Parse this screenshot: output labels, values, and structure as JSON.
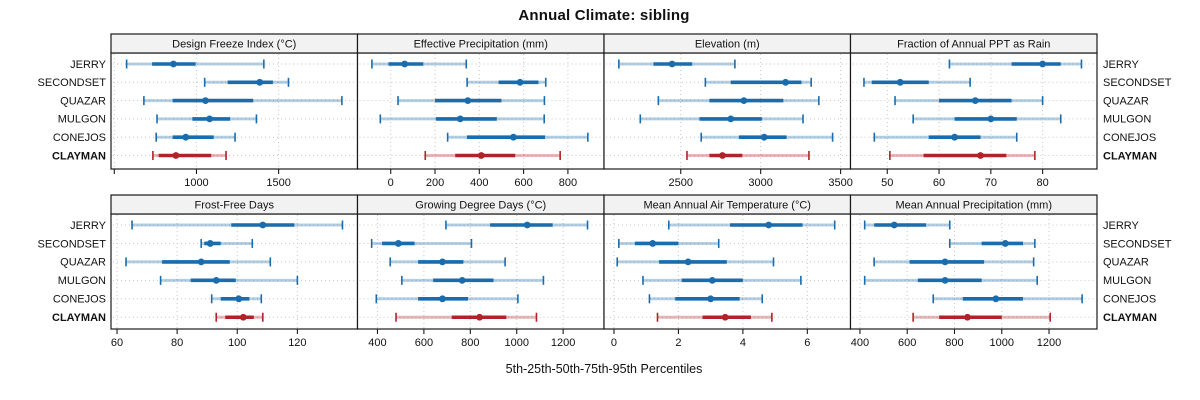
{
  "title": "Annual Climate: sibling",
  "caption": "5th-25th-50th-75th-95th Percentiles",
  "stations": [
    "JERRY",
    "SECONDSET",
    "QUAZAR",
    "MULGON",
    "CONEJOS",
    "CLAYMAN"
  ],
  "highlight_station": "CLAYMAN",
  "percentile_labels": [
    "5th",
    "25th",
    "50th",
    "75th",
    "95th"
  ],
  "colors": {
    "series_normal": "#1a6cad",
    "series_normal_light": "rgba(26,108,173,0.32)",
    "series_highlight": "#b22226",
    "series_highlight_light": "rgba(178,34,38,0.32)",
    "header_fill": "#f2f2f2",
    "border": "#1a1a1a",
    "grid": "#c6c6c6",
    "text": "#111111"
  },
  "chart_data": {
    "type": "scatter",
    "subtype": "trellis-percentile-dotplot",
    "layout": {
      "rows": 2,
      "cols": 4,
      "grid": "dotted",
      "row_labels_both_sides": true
    },
    "title": "Annual Climate: sibling",
    "xlabel": "5th-25th-50th-75th-95th Percentiles",
    "categories": [
      "JERRY",
      "SECONDSET",
      "QUAZAR",
      "MULGON",
      "CONEJOS",
      "CLAYMAN"
    ],
    "panels": [
      {
        "title": "Design Freeze Index (°C)",
        "domain": [
          480,
          1980
        ],
        "ticks": [
          500,
          1000,
          1500
        ],
        "tick_labels": [
          "",
          "1000",
          "1500"
        ],
        "series": [
          [
            575,
            730,
            860,
            995,
            1410
          ],
          [
            1050,
            1190,
            1385,
            1465,
            1560
          ],
          [
            680,
            855,
            1055,
            1345,
            1885
          ],
          [
            760,
            975,
            1080,
            1205,
            1365
          ],
          [
            755,
            855,
            935,
            1105,
            1235
          ],
          [
            735,
            770,
            875,
            1090,
            1180
          ]
        ]
      },
      {
        "title": "Effective Precipitation (mm)",
        "domain": [
          -150,
          963
        ],
        "ticks": [
          0,
          200,
          400,
          600,
          800
        ],
        "tick_labels": [
          "0",
          "200",
          "400",
          "600",
          "800"
        ],
        "series": [
          [
            -85,
            -10,
            63,
            147,
            341
          ],
          [
            345,
            487,
            584,
            667,
            700
          ],
          [
            33,
            200,
            348,
            500,
            694
          ],
          [
            -47,
            204,
            314,
            479,
            693
          ],
          [
            257,
            344,
            554,
            697,
            890
          ],
          [
            156,
            291,
            409,
            562,
            765
          ]
        ]
      },
      {
        "title": "Elevation (m)",
        "domain": [
          2020,
          3562
        ],
        "ticks": [
          2500,
          3000,
          3500
        ],
        "tick_labels": [
          "2500",
          "3000",
          "3500"
        ],
        "series": [
          [
            2113,
            2329,
            2446,
            2572,
            2839
          ],
          [
            2654,
            2813,
            3156,
            3255,
            3316
          ],
          [
            2360,
            2679,
            2895,
            3142,
            3364
          ],
          [
            2247,
            2617,
            2813,
            3008,
            3265
          ],
          [
            2628,
            2864,
            3022,
            3162,
            3450
          ],
          [
            2539,
            2679,
            2761,
            2885,
            3302
          ]
        ]
      },
      {
        "title": "Fraction of Annual PPT as Rain",
        "domain": [
          42.9,
          90.5
        ],
        "ticks": [
          50,
          60,
          70,
          80
        ],
        "tick_labels": [
          "50",
          "60",
          "70",
          "80"
        ],
        "series": [
          [
            62,
            74,
            80,
            83.5,
            87.5
          ],
          [
            45.5,
            47,
            52.5,
            58,
            66
          ],
          [
            51.5,
            60,
            67,
            74,
            80
          ],
          [
            55,
            63,
            70,
            75,
            83.5
          ],
          [
            47.5,
            58,
            63,
            68,
            75
          ],
          [
            50.5,
            57,
            68,
            73,
            78.5
          ]
        ]
      },
      {
        "title": "Frost-Free Days",
        "domain": [
          58,
          140
        ],
        "ticks": [
          60,
          80,
          100,
          120
        ],
        "tick_labels": [
          "60",
          "80",
          "100",
          "120"
        ],
        "series": [
          [
            65,
            98,
            108.5,
            119,
            135
          ],
          [
            88,
            89,
            91,
            94.5,
            105
          ],
          [
            63,
            75,
            88,
            97.5,
            111
          ],
          [
            74.5,
            84.5,
            93,
            99.5,
            120
          ],
          [
            91.5,
            94.5,
            100.5,
            104,
            108
          ],
          [
            93,
            96,
            102,
            105.5,
            108.5
          ]
        ]
      },
      {
        "title": "Growing Degree Days (°C)",
        "domain": [
          314,
          1376
        ],
        "ticks": [
          400,
          600,
          800,
          1000,
          1200
        ],
        "tick_labels": [
          "400",
          "600",
          "800",
          "1000",
          "1200"
        ],
        "series": [
          [
            695,
            885,
            1045,
            1155,
            1305
          ],
          [
            375,
            420,
            490,
            560,
            805
          ],
          [
            455,
            575,
            680,
            770,
            950
          ],
          [
            505,
            640,
            765,
            900,
            1115
          ],
          [
            395,
            575,
            680,
            790,
            1005
          ],
          [
            480,
            720,
            840,
            955,
            1085
          ]
        ]
      },
      {
        "title": "Mean Annual Air Temperature (°C)",
        "domain": [
          -0.31,
          7.34
        ],
        "ticks": [
          0,
          2,
          4,
          6
        ],
        "tick_labels": [
          "0",
          "2",
          "4",
          "6"
        ],
        "series": [
          [
            1.7,
            3.6,
            4.8,
            5.85,
            6.85
          ],
          [
            0.15,
            0.65,
            1.2,
            2.0,
            3.25
          ],
          [
            0.1,
            1.4,
            2.3,
            3.5,
            4.95
          ],
          [
            0.9,
            2.1,
            3.05,
            4.0,
            5.8
          ],
          [
            1.1,
            1.9,
            3.0,
            3.9,
            4.6
          ],
          [
            1.35,
            2.75,
            3.45,
            4.25,
            4.9
          ]
        ]
      },
      {
        "title": "Mean Annual Precipitation (mm)",
        "domain": [
          360,
          1403
        ],
        "ticks": [
          400,
          600,
          800,
          1000,
          1200
        ],
        "tick_labels": [
          "400",
          "600",
          "800",
          "1000",
          "1200"
        ],
        "series": [
          [
            420,
            460,
            545,
            680,
            780
          ],
          [
            780,
            915,
            1015,
            1090,
            1140
          ],
          [
            460,
            610,
            760,
            925,
            1135
          ],
          [
            420,
            645,
            760,
            915,
            1150
          ],
          [
            710,
            835,
            975,
            1090,
            1340
          ],
          [
            625,
            735,
            855,
            1000,
            1205
          ]
        ]
      }
    ]
  }
}
